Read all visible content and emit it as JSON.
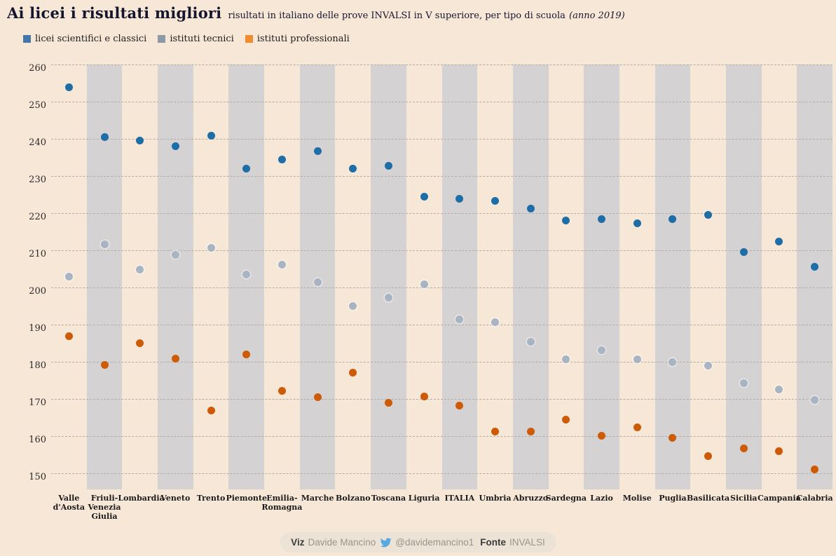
{
  "header": {
    "title": "Ai licei i risultati migliori",
    "subtitle": "risultati in italiano delle prove INVALSI in V superiore, per tipo di scuola",
    "anno": "(anno 2019)"
  },
  "footer": {
    "viz_label": "Viz",
    "author": "Davide Mancino",
    "twitter_icon": "twitter-bird",
    "handle": "@davidemancino1",
    "fonte_label": "Fonte",
    "source": "INVALSI"
  },
  "chart_data": {
    "type": "scatter",
    "title": "Ai licei i risultati migliori",
    "subtitle": "risultati in italiano delle prove INVALSI in V superiore, per tipo di scuola (anno 2019)",
    "legend_position": "top-left",
    "grid": "horizontal-dashed",
    "ylim": [
      150,
      260
    ],
    "yticks": [
      260,
      250,
      240,
      230,
      220,
      210,
      200,
      190,
      180,
      170,
      160,
      150
    ],
    "categories": [
      "Valle d'Aosta",
      "Friuli-Venezia Giulia",
      "Lombardia",
      "Veneto",
      "Trento",
      "Piemonte",
      "Emilia-Romagna",
      "Marche",
      "Bolzano",
      "Toscana",
      "Liguria",
      "ITALIA",
      "Umbria",
      "Abruzzo",
      "Sardegna",
      "Lazio",
      "Molise",
      "Puglia",
      "Basilicata",
      "Sicilia",
      "Campania",
      "Calabria"
    ],
    "category_label_lines": [
      [
        "Valle",
        "d'Aosta"
      ],
      [
        "Friuli-",
        "Venezia",
        "Giulia"
      ],
      [
        "Lombardia"
      ],
      [
        "Veneto"
      ],
      [
        "Trento"
      ],
      [
        "Piemonte"
      ],
      [
        "Emilia-",
        "Romagna"
      ],
      [
        "Marche"
      ],
      [
        "Bolzano"
      ],
      [
        "Toscana"
      ],
      [
        "Liguria"
      ],
      [
        "ITALIA"
      ],
      [
        "Umbria"
      ],
      [
        "Abruzzo"
      ],
      [
        "Sardegna"
      ],
      [
        "Lazio"
      ],
      [
        "Molise"
      ],
      [
        "Puglia"
      ],
      [
        "Basilicata"
      ],
      [
        "Sicilia"
      ],
      [
        "Campania"
      ],
      [
        "Calabria"
      ]
    ],
    "series": [
      {
        "name": "licei scientifici e classici",
        "color": "#1d6da7",
        "legend_color": "#4377a9",
        "values": [
          254.0,
          240.6,
          239.6,
          238.0,
          241.0,
          232.0,
          234.5,
          236.7,
          232.0,
          232.8,
          224.4,
          224.0,
          223.4,
          221.2,
          218.0,
          218.4,
          217.4,
          218.4,
          219.5,
          209.6,
          212.4,
          205.7
        ]
      },
      {
        "name": "istituti tecnici",
        "color": "#a9b4c2",
        "legend_color": "#8e99a5",
        "values": [
          203.0,
          211.6,
          204.9,
          208.8,
          210.7,
          203.5,
          206.2,
          201.4,
          195.1,
          197.4,
          200.9,
          191.5,
          190.8,
          185.5,
          180.8,
          183.1,
          180.7,
          180.0,
          179.0,
          174.3,
          172.6,
          169.7
        ]
      },
      {
        "name": "istituti professionali",
        "color": "#cd5a05",
        "legend_color": "#f08b2f",
        "values": [
          187.0,
          179.2,
          185.0,
          181.0,
          166.9,
          182.0,
          172.3,
          170.6,
          177.2,
          169.0,
          170.8,
          168.2,
          161.3,
          161.3,
          164.5,
          160.2,
          162.4,
          159.6,
          154.7,
          156.8,
          156.0,
          151.1
        ]
      }
    ],
    "styles": {
      "background": "#f7e7d7",
      "stripe": "#d4d2d3",
      "gridline": "#b3ada6",
      "twitter_blue": "#5aa8e0"
    }
  }
}
